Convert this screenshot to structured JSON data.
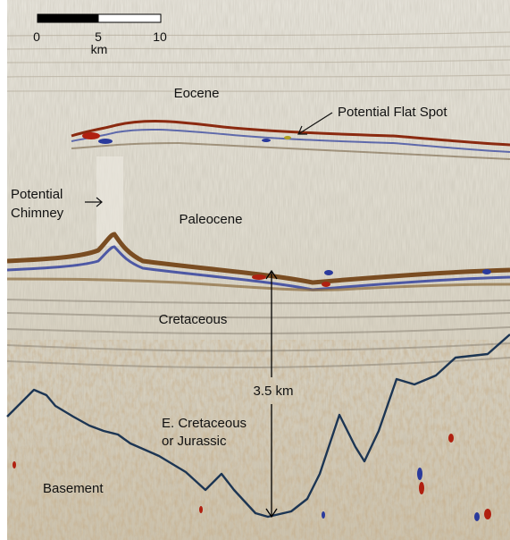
{
  "scale_bar": {
    "ticks": [
      "0",
      "5",
      "10"
    ],
    "unit": "km"
  },
  "labels": {
    "eocene": "Eocene",
    "flat_spot": "Potential Flat Spot",
    "chimney_line1": "Potential",
    "chimney_line2": "Chimney",
    "paleocene": "Paleocene",
    "cretaceous": "Cretaceous",
    "thickness": "3.5 km",
    "early_cret_line1": "E. Cretaceous",
    "early_cret_line2": "or Jurassic",
    "basement": "Basement"
  },
  "colors": {
    "basement_line": "#1c3553",
    "positive_amp": "#8b2a10",
    "negative_amp": "#2a3a9c",
    "background": "#d9d5c7"
  }
}
